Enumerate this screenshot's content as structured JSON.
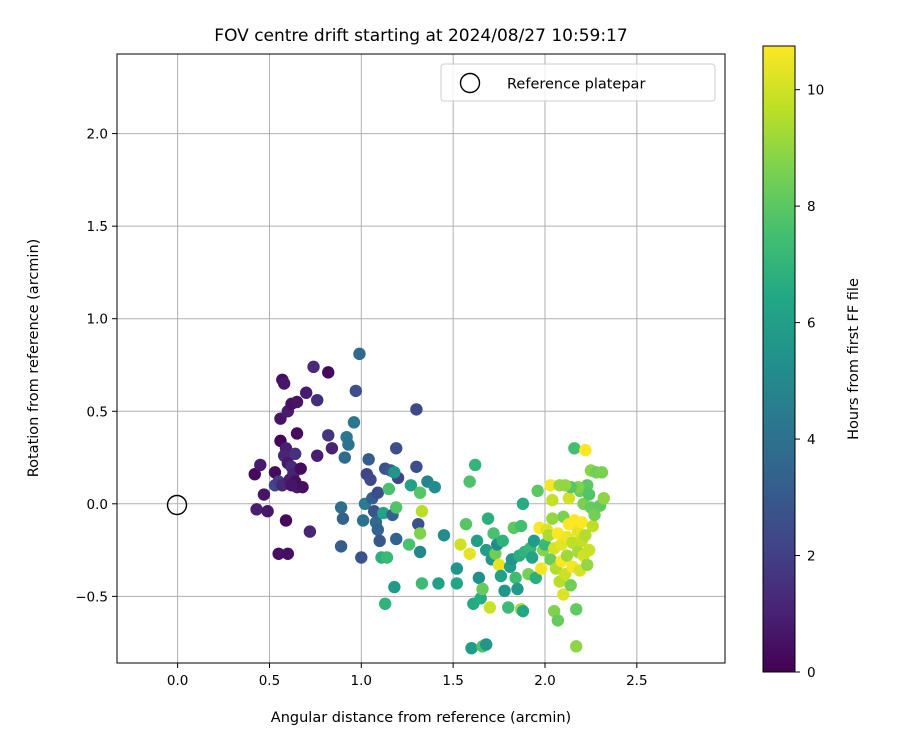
{
  "chart_data": {
    "type": "scatter",
    "title": "FOV centre drift starting at 2024/08/27 10:59:17",
    "xlabel": "Angular distance from reference (arcmin)",
    "ylabel": "Rotation from reference (arcmin)",
    "xlim": [
      -0.33,
      2.98
    ],
    "ylim": [
      -0.86,
      2.43
    ],
    "xticks": [
      0.0,
      0.5,
      1.0,
      1.5,
      2.0,
      2.5
    ],
    "xtick_labels": [
      "0.0",
      "0.5",
      "1.0",
      "1.5",
      "2.0",
      "2.5"
    ],
    "yticks": [
      -0.5,
      0.0,
      0.5,
      1.0,
      1.5,
      2.0
    ],
    "ytick_labels": [
      "−0.5",
      "0.0",
      "0.5",
      "1.0",
      "1.5",
      "2.0"
    ],
    "grid": true,
    "legend": {
      "position": "upper right",
      "entries": [
        "Reference platepar"
      ]
    },
    "colorbar": {
      "label": "Hours from first FF file",
      "colormap": "viridis",
      "range": [
        0,
        10.75
      ],
      "ticks": [
        0,
        2,
        4,
        6,
        8,
        10
      ],
      "tick_labels": [
        "0",
        "2",
        "4",
        "6",
        "8",
        "10"
      ]
    },
    "reference_point": {
      "x": 0.0,
      "y": 0.0
    },
    "series": [
      {
        "points": [
          {
            "x": 0.42,
            "y": 0.16,
            "c": 0.2
          },
          {
            "x": 0.45,
            "y": 0.21,
            "c": 0.8
          },
          {
            "x": 0.43,
            "y": -0.03,
            "c": 0.9
          },
          {
            "x": 0.47,
            "y": 0.05,
            "c": 0.6
          },
          {
            "x": 0.49,
            "y": -0.04,
            "c": 0.7
          },
          {
            "x": 0.53,
            "y": 0.17,
            "c": 0.3
          },
          {
            "x": 0.53,
            "y": 0.1,
            "c": 2.3
          },
          {
            "x": 0.55,
            "y": 0.12,
            "c": 1.9
          },
          {
            "x": 0.57,
            "y": 0.1,
            "c": 1.2
          },
          {
            "x": 0.55,
            "y": -0.27,
            "c": 0.5
          },
          {
            "x": 0.6,
            "y": -0.27,
            "c": 0.4
          },
          {
            "x": 0.59,
            "y": -0.09,
            "c": 0.2
          },
          {
            "x": 0.56,
            "y": 0.34,
            "c": 0.1
          },
          {
            "x": 0.57,
            "y": 0.67,
            "c": 0.4
          },
          {
            "x": 0.58,
            "y": 0.65,
            "c": 0.7
          },
          {
            "x": 0.56,
            "y": 0.46,
            "c": 0.6
          },
          {
            "x": 0.6,
            "y": 0.5,
            "c": 0.8
          },
          {
            "x": 0.62,
            "y": 0.54,
            "c": 0.5
          },
          {
            "x": 0.65,
            "y": 0.55,
            "c": 0.6
          },
          {
            "x": 0.59,
            "y": 0.3,
            "c": 0.9
          },
          {
            "x": 0.58,
            "y": 0.26,
            "c": 1.1
          },
          {
            "x": 0.6,
            "y": 0.22,
            "c": 0.7
          },
          {
            "x": 0.62,
            "y": 0.2,
            "c": 1.3
          },
          {
            "x": 0.64,
            "y": 0.27,
            "c": 1.5
          },
          {
            "x": 0.61,
            "y": 0.13,
            "c": 0.9
          },
          {
            "x": 0.63,
            "y": 0.16,
            "c": 1.0
          },
          {
            "x": 0.65,
            "y": 0.38,
            "c": 0.3
          },
          {
            "x": 0.65,
            "y": 0.09,
            "c": 0.8
          },
          {
            "x": 0.68,
            "y": 0.09,
            "c": 0.5
          },
          {
            "x": 0.64,
            "y": 0.12,
            "c": 0.4
          },
          {
            "x": 0.62,
            "y": 0.1,
            "c": 0.6
          },
          {
            "x": 0.67,
            "y": 0.19,
            "c": 0.3
          },
          {
            "x": 0.7,
            "y": 0.6,
            "c": 0.8
          },
          {
            "x": 0.74,
            "y": 0.74,
            "c": 1.3
          },
          {
            "x": 0.76,
            "y": 0.56,
            "c": 1.4
          },
          {
            "x": 0.82,
            "y": 0.71,
            "c": 0.3
          },
          {
            "x": 0.76,
            "y": 0.26,
            "c": 0.9
          },
          {
            "x": 0.72,
            "y": -0.15,
            "c": 1.1
          },
          {
            "x": 0.82,
            "y": 0.37,
            "c": 1.6
          },
          {
            "x": 0.84,
            "y": 0.3,
            "c": 1.0
          },
          {
            "x": 0.89,
            "y": -0.02,
            "c": 3.9
          },
          {
            "x": 0.9,
            "y": -0.08,
            "c": 3.3
          },
          {
            "x": 0.89,
            "y": -0.23,
            "c": 3.2
          },
          {
            "x": 0.92,
            "y": 0.36,
            "c": 4.3
          },
          {
            "x": 0.93,
            "y": 0.32,
            "c": 4.1
          },
          {
            "x": 0.91,
            "y": 0.25,
            "c": 3.8
          },
          {
            "x": 0.96,
            "y": 0.44,
            "c": 4.2
          },
          {
            "x": 0.97,
            "y": 0.61,
            "c": 2.6
          },
          {
            "x": 0.99,
            "y": 0.81,
            "c": 3.6
          },
          {
            "x": 1.0,
            "y": -0.29,
            "c": 2.8
          },
          {
            "x": 1.01,
            "y": -0.09,
            "c": 4.0
          },
          {
            "x": 1.02,
            "y": 0.0,
            "c": 4.4
          },
          {
            "x": 1.03,
            "y": 0.16,
            "c": 2.1
          },
          {
            "x": 1.04,
            "y": 0.24,
            "c": 3.1
          },
          {
            "x": 1.05,
            "y": 0.13,
            "c": 2.3
          },
          {
            "x": 1.06,
            "y": 0.03,
            "c": 3.2
          },
          {
            "x": 1.07,
            "y": -0.04,
            "c": 2.7
          },
          {
            "x": 1.08,
            "y": -0.1,
            "c": 3.7
          },
          {
            "x": 1.09,
            "y": -0.14,
            "c": 3.4
          },
          {
            "x": 1.1,
            "y": -0.2,
            "c": 2.9
          },
          {
            "x": 1.09,
            "y": 0.06,
            "c": 2.5
          },
          {
            "x": 1.11,
            "y": -0.29,
            "c": 6.8
          },
          {
            "x": 1.12,
            "y": -0.05,
            "c": 6.2
          },
          {
            "x": 1.13,
            "y": 0.19,
            "c": 2.7
          },
          {
            "x": 1.14,
            "y": -0.29,
            "c": 7.2
          },
          {
            "x": 1.13,
            "y": -0.54,
            "c": 6.9
          },
          {
            "x": 1.15,
            "y": 0.08,
            "c": 7.6
          },
          {
            "x": 1.16,
            "y": 0.18,
            "c": 3.0
          },
          {
            "x": 1.17,
            "y": -0.06,
            "c": 3.3
          },
          {
            "x": 1.18,
            "y": -0.45,
            "c": 5.8
          },
          {
            "x": 1.19,
            "y": 0.3,
            "c": 2.6
          },
          {
            "x": 1.2,
            "y": 0.14,
            "c": 2.2
          },
          {
            "x": 1.19,
            "y": -0.19,
            "c": 3.4
          },
          {
            "x": 1.18,
            "y": 0.17,
            "c": 5.5
          },
          {
            "x": 1.19,
            "y": -0.02,
            "c": 7.8
          },
          {
            "x": 1.26,
            "y": -0.22,
            "c": 7.6
          },
          {
            "x": 1.27,
            "y": 0.1,
            "c": 6.1
          },
          {
            "x": 1.3,
            "y": 0.2,
            "c": 2.6
          },
          {
            "x": 1.3,
            "y": 0.51,
            "c": 2.4
          },
          {
            "x": 1.31,
            "y": -0.11,
            "c": 2.8
          },
          {
            "x": 1.32,
            "y": -0.26,
            "c": 4.9
          },
          {
            "x": 1.32,
            "y": -0.16,
            "c": 8.7
          },
          {
            "x": 1.32,
            "y": 0.06,
            "c": 7.9
          },
          {
            "x": 1.33,
            "y": -0.04,
            "c": 9.6
          },
          {
            "x": 1.33,
            "y": -0.43,
            "c": 7.3
          },
          {
            "x": 1.36,
            "y": 0.12,
            "c": 4.8
          },
          {
            "x": 1.4,
            "y": 0.09,
            "c": 5.2
          },
          {
            "x": 1.42,
            "y": -0.43,
            "c": 6.1
          },
          {
            "x": 1.45,
            "y": -0.17,
            "c": 5.2
          },
          {
            "x": 1.52,
            "y": -0.35,
            "c": 5.5
          },
          {
            "x": 1.52,
            "y": -0.43,
            "c": 6.3
          },
          {
            "x": 1.54,
            "y": -0.22,
            "c": 10.0
          },
          {
            "x": 1.57,
            "y": -0.11,
            "c": 7.9
          },
          {
            "x": 1.59,
            "y": -0.27,
            "c": 10.3
          },
          {
            "x": 1.6,
            "y": -0.78,
            "c": 5.9
          },
          {
            "x": 1.59,
            "y": 0.12,
            "c": 7.7
          },
          {
            "x": 1.61,
            "y": -0.54,
            "c": 6.5
          },
          {
            "x": 1.62,
            "y": 0.21,
            "c": 7.0
          },
          {
            "x": 1.63,
            "y": -0.2,
            "c": 6.0
          },
          {
            "x": 1.64,
            "y": -0.4,
            "c": 5.3
          },
          {
            "x": 1.65,
            "y": -0.51,
            "c": 6.6
          },
          {
            "x": 1.66,
            "y": -0.46,
            "c": 8.2
          },
          {
            "x": 1.66,
            "y": -0.77,
            "c": 7.7
          },
          {
            "x": 1.68,
            "y": -0.76,
            "c": 5.6
          },
          {
            "x": 1.68,
            "y": -0.25,
            "c": 6.0
          },
          {
            "x": 1.69,
            "y": -0.08,
            "c": 6.7
          },
          {
            "x": 1.7,
            "y": -0.56,
            "c": 9.9
          },
          {
            "x": 1.71,
            "y": -0.3,
            "c": 5.7
          },
          {
            "x": 1.72,
            "y": -0.16,
            "c": 7.6
          },
          {
            "x": 1.73,
            "y": -0.27,
            "c": 8.4
          },
          {
            "x": 1.74,
            "y": -0.22,
            "c": 5.1
          },
          {
            "x": 1.75,
            "y": -0.33,
            "c": 10.4
          },
          {
            "x": 1.76,
            "y": -0.39,
            "c": 6.1
          },
          {
            "x": 1.77,
            "y": -0.2,
            "c": 6.9
          },
          {
            "x": 1.78,
            "y": -0.47,
            "c": 5.6
          },
          {
            "x": 1.8,
            "y": -0.56,
            "c": 7.3
          },
          {
            "x": 1.81,
            "y": -0.34,
            "c": 6.0
          },
          {
            "x": 1.82,
            "y": -0.3,
            "c": 5.5
          },
          {
            "x": 1.83,
            "y": -0.13,
            "c": 8.0
          },
          {
            "x": 1.84,
            "y": -0.4,
            "c": 7.4
          },
          {
            "x": 1.85,
            "y": -0.46,
            "c": 5.8
          },
          {
            "x": 1.86,
            "y": -0.28,
            "c": 6.7
          },
          {
            "x": 1.87,
            "y": -0.12,
            "c": 7.5
          },
          {
            "x": 1.87,
            "y": -0.57,
            "c": 9.3
          },
          {
            "x": 1.88,
            "y": -0.58,
            "c": 6.4
          },
          {
            "x": 1.88,
            "y": 0.0,
            "c": 6.6
          },
          {
            "x": 1.89,
            "y": -0.26,
            "c": 6.9
          },
          {
            "x": 1.91,
            "y": -0.38,
            "c": 8.5
          },
          {
            "x": 1.92,
            "y": -0.24,
            "c": 7.1
          },
          {
            "x": 1.93,
            "y": -0.29,
            "c": 6.2
          },
          {
            "x": 1.94,
            "y": -0.2,
            "c": 5.9
          },
          {
            "x": 1.95,
            "y": -0.4,
            "c": 6.8
          },
          {
            "x": 1.96,
            "y": 0.07,
            "c": 8.0
          },
          {
            "x": 1.97,
            "y": -0.13,
            "c": 10.7
          },
          {
            "x": 1.98,
            "y": -0.35,
            "c": 10.6
          },
          {
            "x": 1.99,
            "y": -0.25,
            "c": 8.8
          },
          {
            "x": 2.0,
            "y": -0.22,
            "c": 7.2
          },
          {
            "x": 2.01,
            "y": -0.14,
            "c": 10.2
          },
          {
            "x": 2.02,
            "y": -0.17,
            "c": 9.4
          },
          {
            "x": 2.03,
            "y": 0.1,
            "c": 10.6
          },
          {
            "x": 2.03,
            "y": -0.3,
            "c": 8.3
          },
          {
            "x": 2.04,
            "y": -0.08,
            "c": 9.0
          },
          {
            "x": 2.04,
            "y": 0.02,
            "c": 9.8
          },
          {
            "x": 2.05,
            "y": -0.58,
            "c": 8.7
          },
          {
            "x": 2.05,
            "y": -0.24,
            "c": 10.1
          },
          {
            "x": 2.06,
            "y": -0.35,
            "c": 9.5
          },
          {
            "x": 2.07,
            "y": -0.16,
            "c": 10.8
          },
          {
            "x": 2.07,
            "y": -0.63,
            "c": 8.2
          },
          {
            "x": 2.08,
            "y": 0.1,
            "c": 9.1
          },
          {
            "x": 2.08,
            "y": -0.42,
            "c": 9.6
          },
          {
            "x": 2.09,
            "y": -0.22,
            "c": 10.3
          },
          {
            "x": 2.09,
            "y": -0.31,
            "c": 10.7
          },
          {
            "x": 2.1,
            "y": -0.49,
            "c": 10.2
          },
          {
            "x": 2.1,
            "y": -0.07,
            "c": 8.6
          },
          {
            "x": 2.11,
            "y": -0.38,
            "c": 9.9
          },
          {
            "x": 2.12,
            "y": -0.18,
            "c": 10.5
          },
          {
            "x": 2.12,
            "y": -0.28,
            "c": 9.2
          },
          {
            "x": 2.13,
            "y": 0.03,
            "c": 10.0
          },
          {
            "x": 2.13,
            "y": -0.11,
            "c": 10.8
          },
          {
            "x": 2.14,
            "y": -0.44,
            "c": 8.4
          },
          {
            "x": 2.15,
            "y": -0.21,
            "c": 9.7
          },
          {
            "x": 2.15,
            "y": -0.34,
            "c": 10.6
          },
          {
            "x": 2.16,
            "y": 0.3,
            "c": 7.5
          },
          {
            "x": 2.16,
            "y": -0.09,
            "c": 10.9
          },
          {
            "x": 2.17,
            "y": -0.57,
            "c": 8.1
          },
          {
            "x": 2.17,
            "y": -0.77,
            "c": 8.9
          },
          {
            "x": 2.18,
            "y": -0.15,
            "c": 10.4
          },
          {
            "x": 2.18,
            "y": -0.26,
            "c": 9.3
          },
          {
            "x": 2.19,
            "y": 0.07,
            "c": 8.3
          },
          {
            "x": 2.19,
            "y": -0.36,
            "c": 10.1
          },
          {
            "x": 2.2,
            "y": -0.1,
            "c": 10.7
          },
          {
            "x": 2.2,
            "y": -0.2,
            "c": 9.8
          },
          {
            "x": 2.21,
            "y": 0.0,
            "c": 8.6
          },
          {
            "x": 2.21,
            "y": -0.28,
            "c": 10.0
          },
          {
            "x": 2.22,
            "y": 0.29,
            "c": 10.9
          },
          {
            "x": 2.22,
            "y": -0.17,
            "c": 9.5
          },
          {
            "x": 2.23,
            "y": 0.1,
            "c": 8.0
          },
          {
            "x": 2.23,
            "y": -0.33,
            "c": 9.0
          },
          {
            "x": 2.24,
            "y": -0.25,
            "c": 9.9
          },
          {
            "x": 2.25,
            "y": 0.18,
            "c": 8.8
          },
          {
            "x": 2.25,
            "y": -0.02,
            "c": 8.2
          },
          {
            "x": 2.26,
            "y": -0.12,
            "c": 9.7
          },
          {
            "x": 2.27,
            "y": -0.06,
            "c": 8.5
          },
          {
            "x": 2.28,
            "y": 0.17,
            "c": 8.4
          },
          {
            "x": 2.3,
            "y": -0.01,
            "c": 8.1
          },
          {
            "x": 2.31,
            "y": 0.17,
            "c": 8.6
          },
          {
            "x": 2.32,
            "y": 0.03,
            "c": 8.9
          },
          {
            "x": 2.24,
            "y": 0.05,
            "c": 7.8
          },
          {
            "x": 2.18,
            "y": 0.09,
            "c": 8.7
          },
          {
            "x": 2.14,
            "y": 0.09,
            "c": 7.9
          },
          {
            "x": 2.11,
            "y": 0.1,
            "c": 9.0
          }
        ]
      }
    ]
  }
}
